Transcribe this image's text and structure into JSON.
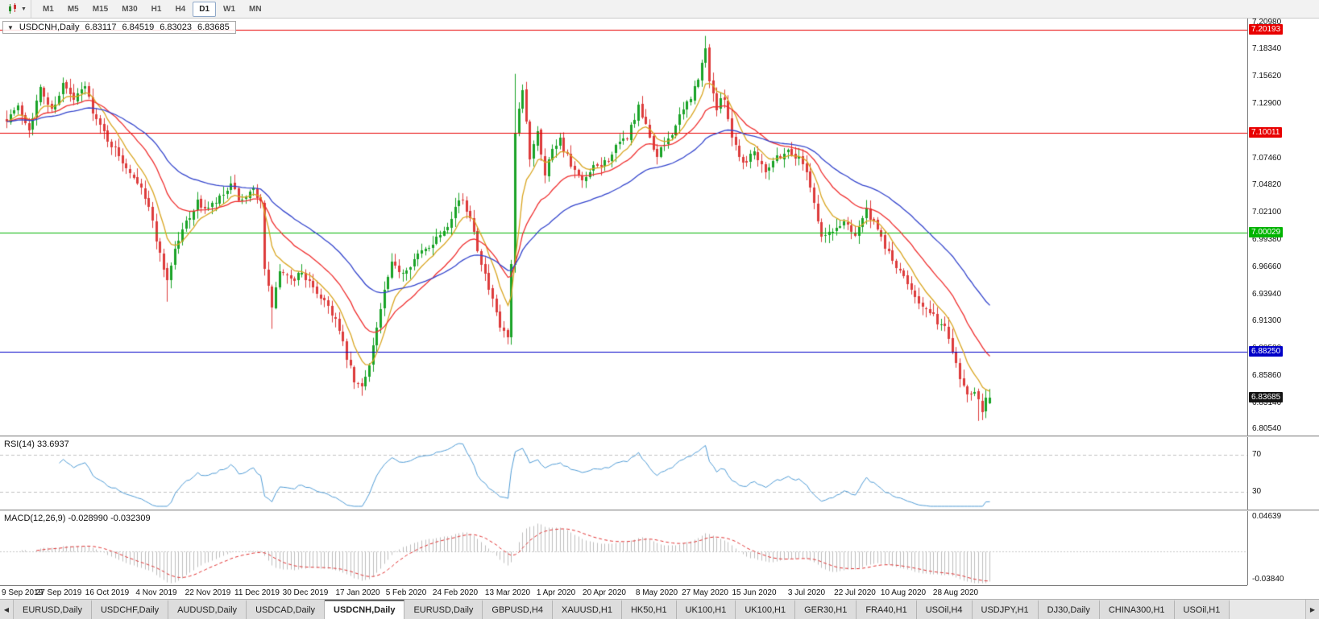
{
  "toolbar": {
    "timeframes": [
      "M1",
      "M5",
      "M15",
      "M30",
      "H1",
      "H4",
      "D1",
      "W1",
      "MN"
    ],
    "active_timeframe": "D1"
  },
  "header": {
    "collapse_arrow": "▼",
    "symbol": "USDCNH,Daily",
    "open": "6.83117",
    "high": "6.84519",
    "low": "6.83023",
    "close": "6.83685"
  },
  "chart_data": {
    "type": "candlestick",
    "symbol": "USDCNH",
    "timeframe": "Daily",
    "bars": 264,
    "price_range": [
      6.799,
      7.2135
    ],
    "up_color": "#1aa327",
    "down_color": "#dd3b3b",
    "y_ticks": [
      "7.20980",
      "7.18340",
      "7.15620",
      "7.12900",
      "7.10180",
      "7.07460",
      "7.04820",
      "7.02100",
      "6.99380",
      "6.96660",
      "6.93940",
      "6.91300",
      "6.88580",
      "6.85860",
      "6.83140",
      "6.80540"
    ],
    "h_lines": [
      {
        "value": 7.20193,
        "label": "7.20193",
        "color": "#e80000"
      },
      {
        "value": 7.10011,
        "label": "7.10011",
        "color": "#e80000"
      },
      {
        "value": 7.00029,
        "label": "7.00029",
        "color": "#00b400"
      },
      {
        "value": 6.8825,
        "label": "6.88250",
        "color": "#0000c8"
      }
    ],
    "current_price": {
      "value": 6.83685,
      "label": "6.83685",
      "color": "#141414"
    },
    "moving_averages": [
      {
        "period": 8,
        "type": "ema",
        "color": "#d9a520"
      },
      {
        "period": 21,
        "type": "ema",
        "color": "#ef2d2d"
      },
      {
        "period": 45,
        "type": "ema",
        "color": "#3344cc"
      }
    ],
    "x_labels": [
      {
        "i": 0,
        "label": "9 Sep 2019"
      },
      {
        "i": 14,
        "label": "27 Sep 2019"
      },
      {
        "i": 27,
        "label": "16 Oct 2019"
      },
      {
        "i": 40,
        "label": "4 Nov 2019"
      },
      {
        "i": 54,
        "label": "22 Nov 2019"
      },
      {
        "i": 67,
        "label": "11 Dec 2019"
      },
      {
        "i": 80,
        "label": "30 Dec 2019"
      },
      {
        "i": 94,
        "label": "17 Jan 2020"
      },
      {
        "i": 107,
        "label": "5 Feb 2020"
      },
      {
        "i": 120,
        "label": "24 Feb 2020"
      },
      {
        "i": 134,
        "label": "13 Mar 2020"
      },
      {
        "i": 147,
        "label": "1 Apr 2020"
      },
      {
        "i": 160,
        "label": "20 Apr 2020"
      },
      {
        "i": 174,
        "label": "8 May 2020"
      },
      {
        "i": 187,
        "label": "27 May 2020"
      },
      {
        "i": 200,
        "label": "15 Jun 2020"
      },
      {
        "i": 214,
        "label": "3 Jul 2020"
      },
      {
        "i": 227,
        "label": "22 Jul 2020"
      },
      {
        "i": 240,
        "label": "10 Aug 2020"
      },
      {
        "i": 254,
        "label": "28 Aug 2020"
      }
    ],
    "close_path": [
      [
        0,
        7.115
      ],
      [
        3,
        7.125
      ],
      [
        6,
        7.105
      ],
      [
        9,
        7.143
      ],
      [
        12,
        7.122
      ],
      [
        15,
        7.148
      ],
      [
        18,
        7.132
      ],
      [
        21,
        7.146
      ],
      [
        24,
        7.112
      ],
      [
        27,
        7.094
      ],
      [
        30,
        7.076
      ],
      [
        33,
        7.062
      ],
      [
        36,
        7.048
      ],
      [
        39,
        7.012
      ],
      [
        41,
        6.978
      ],
      [
        43,
        6.954
      ],
      [
        45,
        6.984
      ],
      [
        48,
        7.012
      ],
      [
        51,
        7.03
      ],
      [
        54,
        7.024
      ],
      [
        57,
        7.034
      ],
      [
        60,
        7.046
      ],
      [
        63,
        7.03
      ],
      [
        66,
        7.042
      ],
      [
        68,
        7.034
      ],
      [
        69,
        6.962
      ],
      [
        71,
        6.928
      ],
      [
        73,
        6.962
      ],
      [
        76,
        6.952
      ],
      [
        79,
        6.962
      ],
      [
        82,
        6.944
      ],
      [
        85,
        6.934
      ],
      [
        88,
        6.914
      ],
      [
        91,
        6.876
      ],
      [
        93,
        6.852
      ],
      [
        95,
        6.846
      ],
      [
        97,
        6.872
      ],
      [
        99,
        6.906
      ],
      [
        101,
        6.942
      ],
      [
        103,
        6.968
      ],
      [
        106,
        6.962
      ],
      [
        109,
        6.974
      ],
      [
        112,
        6.984
      ],
      [
        115,
        6.996
      ],
      [
        118,
        7.01
      ],
      [
        121,
        7.034
      ],
      [
        124,
        7.018
      ],
      [
        126,
        6.986
      ],
      [
        129,
        6.944
      ],
      [
        132,
        6.906
      ],
      [
        134,
        6.896
      ],
      [
        135,
        6.966
      ],
      [
        136,
        7.098
      ],
      [
        138,
        7.142
      ],
      [
        140,
        7.076
      ],
      [
        142,
        7.104
      ],
      [
        144,
        7.058
      ],
      [
        146,
        7.086
      ],
      [
        148,
        7.094
      ],
      [
        151,
        7.066
      ],
      [
        154,
        7.05
      ],
      [
        157,
        7.064
      ],
      [
        160,
        7.07
      ],
      [
        163,
        7.084
      ],
      [
        166,
        7.096
      ],
      [
        169,
        7.124
      ],
      [
        171,
        7.106
      ],
      [
        174,
        7.076
      ],
      [
        177,
        7.094
      ],
      [
        180,
        7.114
      ],
      [
        183,
        7.136
      ],
      [
        185,
        7.152
      ],
      [
        187,
        7.183
      ],
      [
        188,
        7.154
      ],
      [
        190,
        7.124
      ],
      [
        192,
        7.136
      ],
      [
        194,
        7.096
      ],
      [
        197,
        7.07
      ],
      [
        200,
        7.082
      ],
      [
        203,
        7.064
      ],
      [
        206,
        7.076
      ],
      [
        209,
        7.082
      ],
      [
        212,
        7.074
      ],
      [
        214,
        7.064
      ],
      [
        216,
        7.03
      ],
      [
        218,
        6.996
      ],
      [
        221,
        7.002
      ],
      [
        224,
        7.012
      ],
      [
        227,
        7.0
      ],
      [
        230,
        7.022
      ],
      [
        233,
        7.002
      ],
      [
        236,
        6.98
      ],
      [
        239,
        6.96
      ],
      [
        242,
        6.946
      ],
      [
        245,
        6.926
      ],
      [
        248,
        6.916
      ],
      [
        251,
        6.906
      ],
      [
        253,
        6.886
      ],
      [
        255,
        6.858
      ],
      [
        257,
        6.84
      ],
      [
        259,
        6.846
      ],
      [
        261,
        6.826
      ],
      [
        262,
        6.838
      ],
      [
        263,
        6.83685
      ]
    ],
    "wick_events": [
      {
        "i": 43,
        "low": 6.932
      },
      {
        "i": 71,
        "low": 6.905
      },
      {
        "i": 95,
        "low": 6.8385
      },
      {
        "i": 136,
        "high": 7.1585
      },
      {
        "i": 187,
        "high": 7.1962
      },
      {
        "i": 260,
        "low": 6.8135
      }
    ],
    "last_candle": {
      "open": 6.83117,
      "high": 6.84519,
      "low": 6.83023,
      "close": 6.83685
    },
    "indicators": [
      {
        "name": "RSI",
        "label": "RSI(14) 33.6937",
        "period": 14,
        "value": 33.6937,
        "levels": [
          "70",
          "30"
        ],
        "level_values": [
          70,
          30
        ],
        "color": "#4f9bd5",
        "range": [
          15,
          85
        ]
      },
      {
        "name": "MACD",
        "label": "MACD(12,26,9) -0.028990 -0.032309",
        "fast": 12,
        "slow": 26,
        "signal_period": 9,
        "value": -0.02899,
        "signal_value": -0.032309,
        "axis_max_label": "0.04639",
        "axis_min_label": "-0.03840",
        "axis_max": 0.04639,
        "axis_min": -0.0384,
        "hist_color": "#bdbdbd",
        "signal_color": "#e03030"
      }
    ]
  },
  "tabs": {
    "scroll_left": "◀",
    "scroll_right": "▶",
    "active_index": 4,
    "items": [
      "EURUSD,Daily",
      "USDCHF,Daily",
      "AUDUSD,Daily",
      "USDCAD,Daily",
      "USDCNH,Daily",
      "EURUSD,Daily",
      "GBPUSD,H4",
      "XAUUSD,H1",
      "HK50,H1",
      "UK100,H1",
      "UK100,H1",
      "GER30,H1",
      "FRA40,H1",
      "USOil,H4",
      "USDJPY,H1",
      "DJ30,Daily",
      "CHINA300,H1",
      "USOil,H1"
    ]
  }
}
